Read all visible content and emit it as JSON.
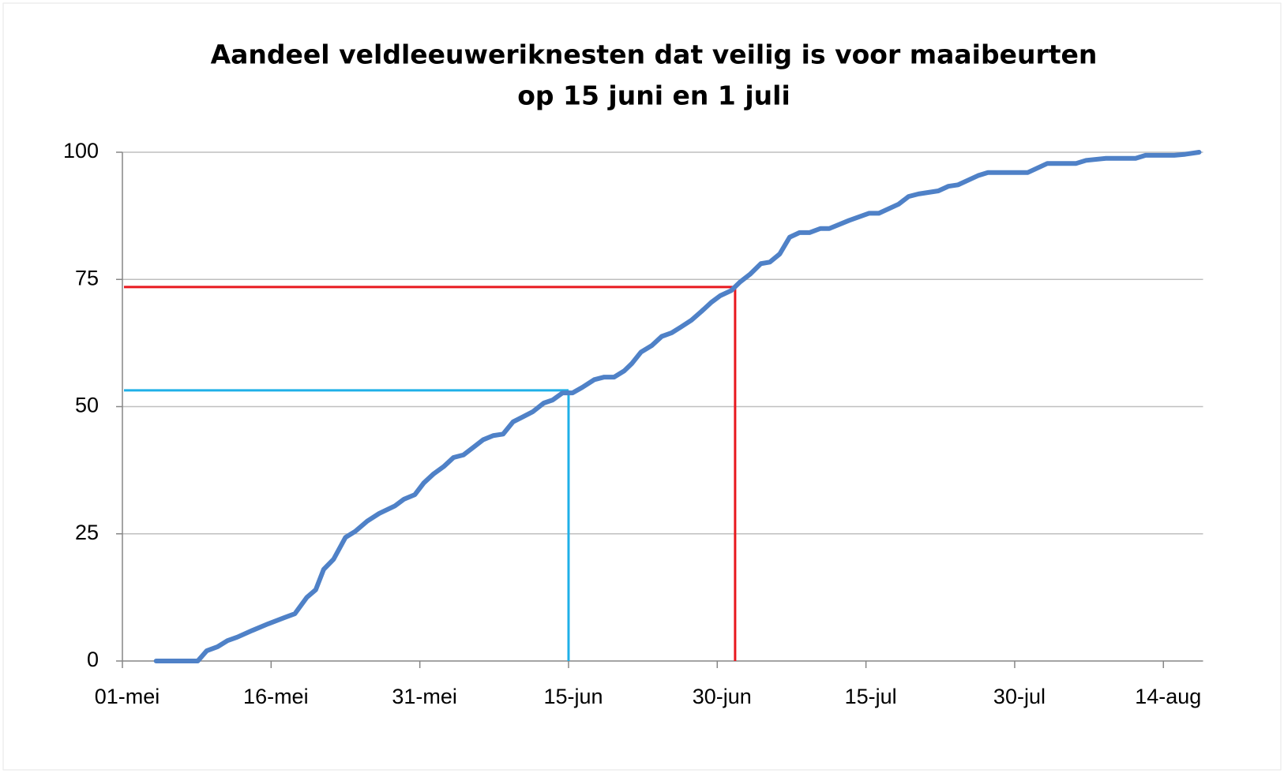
{
  "chart_data": {
    "type": "line",
    "title": [
      "Aandeel veldleeuweriknesten dat veilig is voor maaibeurten",
      "op 15 juni  en 1 juli"
    ],
    "x": [
      3.4,
      7.6,
      8.5,
      9.6,
      10.6,
      11.6,
      13.1,
      14.7,
      16.3,
      17.4,
      18.6,
      19.5,
      20.3,
      21.3,
      22.5,
      23.5,
      24.7,
      25.9,
      27.5,
      28.4,
      29.5,
      30.4,
      31.4,
      32.4,
      33.4,
      34.4,
      35.4,
      36.4,
      37.4,
      38.4,
      39.4,
      40.4,
      41.4,
      42.5,
      43.4,
      44.4,
      45.4,
      46.4,
      47.6,
      48.6,
      49.6,
      50.6,
      51.4,
      52.3,
      53.4,
      54.4,
      55.4,
      56.3,
      57.4,
      58.4,
      59.4,
      60.3,
      61.4,
      62.3,
      63.3,
      64.4,
      65.3,
      66.3,
      67.3,
      68.3,
      69.3,
      70.4,
      71.3,
      73.3,
      75.3,
      76.3,
      78.3,
      79.3,
      80.3,
      82.3,
      83.3,
      84.3,
      86.3,
      87.3,
      91.3,
      93.3,
      96.2,
      97.2,
      99.2,
      102.2,
      103.2,
      106.1,
      107.2,
      108.6
    ],
    "series": [
      {
        "color": "#4f81c7",
        "values": [
          0,
          0,
          2,
          2.8,
          4,
          4.7,
          6,
          7.3,
          8.5,
          9.3,
          12.5,
          14,
          18,
          20,
          24.3,
          25.5,
          27.5,
          29,
          30.5,
          31.8,
          32.7,
          35,
          36.8,
          38.2,
          40,
          40.5,
          42,
          43.5,
          44.3,
          44.6,
          47,
          48,
          49,
          50.7,
          51.3,
          52.7,
          52.7,
          53.8,
          55.3,
          55.8,
          55.8,
          57,
          58.5,
          60.7,
          62,
          63.8,
          64.5,
          65.6,
          67,
          68.7,
          70.5,
          71.8,
          72.8,
          74.5,
          76,
          78.1,
          78.4,
          80,
          83.3,
          84.2,
          84.2,
          85,
          85,
          86.6,
          88,
          88,
          89.8,
          91.3,
          91.8,
          92.4,
          93.3,
          93.6,
          95.4,
          96,
          96,
          97.8,
          97.8,
          98.4,
          98.8,
          98.8,
          99.4,
          99.4,
          99.6,
          100
        ]
      }
    ],
    "reference_lines": [
      {
        "x": 45,
        "y": 53.2,
        "color": "#1fb0e8"
      },
      {
        "x": 61.8,
        "y": 73.5,
        "color": "#e8191f"
      }
    ],
    "xlim": [
      0,
      109
    ],
    "xticks": [
      {
        "value": 0,
        "label": "01-mei"
      },
      {
        "value": 15,
        "label": "16-mei"
      },
      {
        "value": 30,
        "label": "31-mei"
      },
      {
        "value": 45,
        "label": "15-jun"
      },
      {
        "value": 60,
        "label": "30-jun"
      },
      {
        "value": 75,
        "label": "15-jul"
      },
      {
        "value": 90,
        "label": "30-jul"
      },
      {
        "value": 105,
        "label": "14-aug"
      }
    ],
    "ylim": [
      0,
      100
    ],
    "yticks": [
      0,
      25,
      50,
      75,
      100
    ],
    "grid": true
  }
}
